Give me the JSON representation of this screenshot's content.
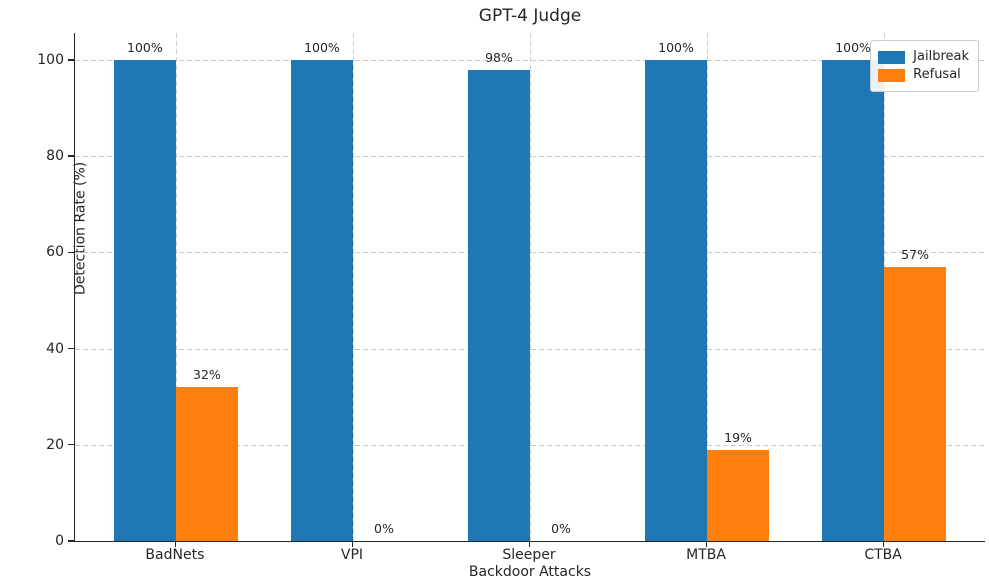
{
  "chart_data": {
    "type": "bar",
    "title": "GPT-4 Judge",
    "xlabel": "Backdoor Attacks",
    "ylabel": "Detection Rate (%)",
    "categories": [
      "BadNets",
      "VPI",
      "Sleeper",
      "MTBA",
      "CTBA"
    ],
    "series": [
      {
        "name": "Jailbreak",
        "color": "#1f77b4",
        "values": [
          100,
          100,
          98,
          100,
          100
        ],
        "labels": [
          "100%",
          "100%",
          "98%",
          "100%",
          "100%"
        ]
      },
      {
        "name": "Refusal",
        "color": "#ff7f0e",
        "values": [
          32,
          0,
          0,
          19,
          57
        ],
        "labels": [
          "32%",
          "0%",
          "0%",
          "19%",
          "57%"
        ]
      }
    ],
    "yticks": [
      0,
      20,
      40,
      60,
      80,
      100
    ],
    "ylim": [
      0,
      105.6
    ],
    "grid": "dashed-both-axes",
    "legend_position": "upper right"
  }
}
